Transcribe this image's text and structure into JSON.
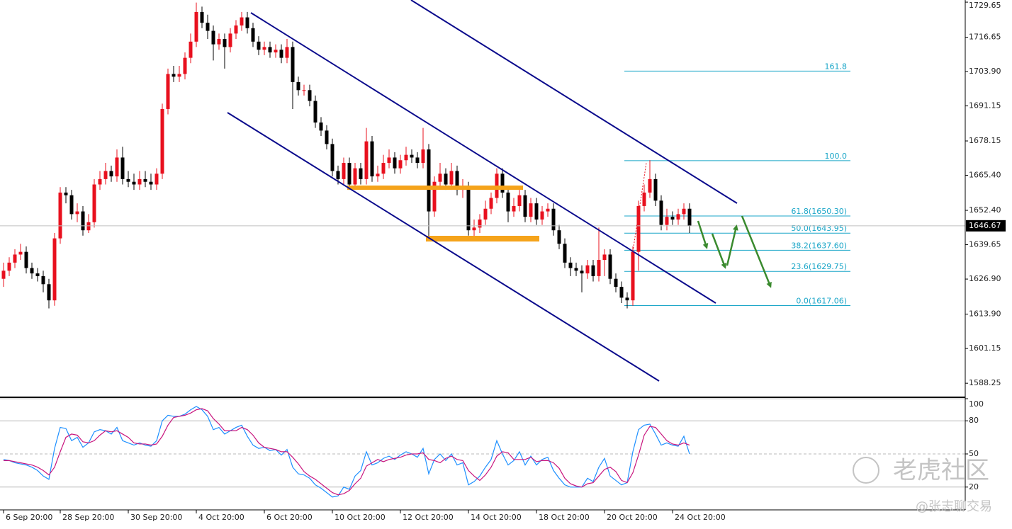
{
  "chart_data": [
    {
      "type": "candlestick",
      "categories": [
        "6 Sep 20:00",
        null,
        null,
        null,
        null,
        null,
        null,
        null,
        null,
        null,
        "28 Sep 20:00",
        null,
        null,
        null,
        null,
        null,
        null,
        null,
        null,
        null,
        null,
        null,
        "30 Sep 20:00",
        null,
        null,
        null,
        null,
        null,
        null,
        null,
        null,
        null,
        null,
        null,
        "4 Oct 20:00",
        null,
        null,
        null,
        null,
        null,
        null,
        null,
        null,
        null,
        null,
        null,
        "6 Oct 20:00",
        null,
        null,
        null,
        null,
        null,
        null,
        null,
        null,
        null,
        null,
        null,
        "10 Oct 20:00",
        null,
        null,
        null,
        null,
        null,
        null,
        null,
        null,
        null,
        null,
        null,
        "12 Oct 20:00",
        null,
        null,
        null,
        null,
        null,
        null,
        null,
        null,
        null,
        null,
        null,
        "14 Oct 20:00",
        null,
        null,
        null,
        null,
        null,
        null,
        null,
        null,
        null,
        null,
        null,
        "18 Oct 20:00",
        null,
        null,
        null,
        null,
        null,
        null,
        null,
        null,
        null,
        null,
        null,
        "20 Oct 20:00",
        null,
        null,
        null,
        null,
        null,
        null,
        null,
        null,
        null,
        null,
        null,
        "24 Oct 20:00",
        null,
        null,
        null
      ],
      "open": [
        1627,
        1630,
        1633,
        1636,
        1637,
        1631,
        1629,
        1628,
        1625,
        1619,
        1642,
        1659,
        1658,
        1651,
        1652,
        1645,
        1648,
        1662,
        1664,
        1667,
        1665,
        1672,
        1664,
        1663,
        1662,
        1664,
        1663,
        1662,
        1666,
        1690,
        1703,
        1702,
        1703,
        1709,
        1715,
        1726,
        1722,
        1719,
        1714,
        1716,
        1713,
        1718,
        1721,
        1724,
        1720,
        1715,
        1712,
        1713,
        1711,
        1712,
        1709,
        1713,
        1700,
        1697,
        1697,
        1693,
        1685,
        1682,
        1677,
        1667,
        1664,
        1670,
        1662,
        1668,
        1664,
        1678,
        1665,
        1666,
        1670,
        1672,
        1668,
        1671,
        1673,
        1672,
        1670,
        1675,
        1652,
        1663,
        1666,
        1662,
        1667,
        1660,
        1661,
        1645,
        1646,
        1649,
        1653,
        1657,
        1666,
        1659,
        1652,
        1654,
        1658,
        1650,
        1655,
        1649,
        1652,
        1653,
        1645,
        1640,
        1633,
        1631,
        1630,
        1629,
        1632,
        1628,
        1634,
        1636,
        1627,
        1624,
        1620,
        1619,
        1637,
        1654,
        1659,
        1664,
        1656,
        1647,
        1650,
        1649,
        1651,
        1653
      ],
      "high": [
        1633,
        1635,
        1638,
        1640,
        1639,
        1633,
        1631,
        1630,
        1627,
        1644,
        1661,
        1661,
        1660,
        1655,
        1654,
        1651,
        1664,
        1667,
        1670,
        1669,
        1675,
        1676,
        1667,
        1666,
        1667,
        1667,
        1666,
        1668,
        1692,
        1705,
        1706,
        1706,
        1711,
        1718,
        1729.5,
        1728,
        1725,
        1721,
        1718,
        1718,
        1720,
        1723,
        1726,
        1726,
        1722,
        1717,
        1715,
        1715,
        1714,
        1714,
        1716,
        1715,
        1702,
        1699,
        1699,
        1695,
        1687,
        1684,
        1679,
        1669,
        1672,
        1672,
        1670,
        1670,
        1683,
        1680,
        1669,
        1673,
        1675,
        1674,
        1673,
        1676,
        1675,
        1674,
        1683,
        1677,
        1665,
        1670,
        1668,
        1670,
        1669,
        1664,
        1663,
        1649,
        1651,
        1656,
        1659,
        1668,
        1668,
        1661,
        1657,
        1660,
        1660,
        1657,
        1657,
        1654,
        1655,
        1655,
        1647,
        1642,
        1635,
        1633,
        1632,
        1634,
        1634,
        1646,
        1638,
        1638,
        1629,
        1626,
        1622,
        1639,
        1656,
        1662,
        1671,
        1666,
        1658,
        1653,
        1652,
        1653,
        1655,
        1655
      ],
      "low": [
        1624,
        1628,
        1631,
        1634,
        1629,
        1627,
        1626,
        1622,
        1616,
        1617,
        1640,
        1655,
        1649,
        1648,
        1643,
        1644,
        1646,
        1660,
        1662,
        1663,
        1663,
        1662,
        1661,
        1660,
        1660,
        1661,
        1660,
        1660,
        1664,
        1688,
        1700,
        1700,
        1701,
        1707,
        1713,
        1720,
        1716,
        1708,
        1712,
        1705,
        1711,
        1716,
        1719,
        1718,
        1713,
        1710,
        1710,
        1709,
        1709,
        1707,
        1707,
        1690,
        1695,
        1695,
        1691,
        1683,
        1680,
        1675,
        1665,
        1662,
        1662,
        1660,
        1660,
        1662,
        1662,
        1663,
        1663,
        1664,
        1668,
        1666,
        1666,
        1669,
        1670,
        1668,
        1668,
        1641,
        1650,
        1661,
        1660,
        1660,
        1658,
        1657,
        1643,
        1642,
        1644,
        1647,
        1651,
        1655,
        1657,
        1648,
        1650,
        1652,
        1648,
        1648,
        1647,
        1647,
        1650,
        1643,
        1638,
        1631,
        1628,
        1628,
        1622,
        1627,
        1626,
        1626,
        1628,
        1625,
        1622,
        1618,
        1616,
        1617,
        1630,
        1652,
        1657,
        1654,
        1645,
        1645,
        1647,
        1647,
        1649,
        1644
      ],
      "close": [
        1630,
        1633,
        1636,
        1637,
        1631,
        1629,
        1628,
        1625,
        1619,
        1642,
        1659,
        1658,
        1651,
        1652,
        1645,
        1648,
        1662,
        1664,
        1667,
        1665,
        1672,
        1664,
        1663,
        1662,
        1664,
        1663,
        1662,
        1666,
        1690,
        1703,
        1702,
        1703,
        1709,
        1715,
        1726,
        1722,
        1719,
        1714,
        1716,
        1713,
        1718,
        1721,
        1724,
        1720,
        1715,
        1712,
        1713,
        1711,
        1712,
        1709,
        1713,
        1700,
        1697,
        1697,
        1693,
        1685,
        1682,
        1677,
        1667,
        1664,
        1670,
        1662,
        1668,
        1664,
        1678,
        1665,
        1666,
        1670,
        1672,
        1668,
        1671,
        1673,
        1672,
        1670,
        1675,
        1652,
        1663,
        1666,
        1662,
        1667,
        1660,
        1661,
        1645,
        1646,
        1649,
        1653,
        1657,
        1666,
        1659,
        1652,
        1654,
        1658,
        1650,
        1655,
        1649,
        1652,
        1653,
        1645,
        1640,
        1633,
        1631,
        1630,
        1629,
        1632,
        1628,
        1634,
        1636,
        1627,
        1624,
        1620,
        1619,
        1637,
        1654,
        1659,
        1664,
        1656,
        1647,
        1650,
        1649,
        1651,
        1653,
        1646.67
      ],
      "up_color": "#e8101e",
      "down_color": "#000000",
      "ylim": [
        1583.3,
        1730.45
      ],
      "yticks": [
        1729.65,
        1716.65,
        {
          "value": 1703.9,
          "label": "1703.90"
        },
        1691.15,
        1678.15,
        {
          "value": 1665.4,
          "label": "1665.40"
        },
        {
          "value": 1652.4,
          "label": "1652.40"
        },
        1639.65,
        {
          "value": 1626.9,
          "label": "1626.90"
        },
        {
          "value": 1613.9,
          "label": "1613.90"
        },
        1601.15,
        1588.25
      ],
      "fibonacci": [
        {
          "label": "161.8",
          "price": 1704.09
        },
        {
          "label": "100.0",
          "price": 1670.85
        },
        {
          "label": "61.8(1650.30)",
          "price": 1650.3
        },
        {
          "label": "50.0(1643.95)",
          "price": 1643.95
        },
        {
          "label": "38.2(1637.60)",
          "price": 1637.6
        },
        {
          "label": "23.6(1629.75)",
          "price": 1629.75
        },
        {
          "label": "0.0(1617.06)",
          "price": 1617.06
        }
      ],
      "fib_color": "#1aa6c8"
    },
    {
      "type": "line",
      "ylim": [
        0,
        100
      ],
      "yticks": [
        100,
        80,
        50,
        20
      ],
      "series": [
        {
          "color": "#1e90ff",
          "values": [
            45,
            44,
            42,
            41,
            40,
            38,
            35,
            30,
            27,
            55,
            74,
            73,
            62,
            65,
            56,
            60,
            70,
            72,
            71,
            68,
            74,
            62,
            60,
            58,
            60,
            58,
            57,
            62,
            80,
            85,
            84,
            84,
            86,
            90,
            93,
            90,
            84,
            72,
            74,
            68,
            71,
            74,
            76,
            66,
            58,
            55,
            56,
            53,
            54,
            49,
            54,
            38,
            32,
            31,
            28,
            22,
            19,
            15,
            11,
            12,
            20,
            18,
            30,
            35,
            52,
            40,
            42,
            46,
            48,
            45,
            49,
            52,
            50,
            47,
            55,
            32,
            45,
            50,
            44,
            50,
            40,
            42,
            22,
            25,
            30,
            38,
            45,
            62,
            50,
            40,
            44,
            52,
            40,
            48,
            40,
            45,
            47,
            35,
            28,
            22,
            20,
            20,
            20,
            28,
            25,
            38,
            46,
            30,
            26,
            22,
            24,
            52,
            72,
            76,
            77,
            68,
            58,
            60,
            58,
            57,
            66,
            50
          ]
        },
        {
          "color": "#c8167e",
          "values": [
            44,
            44,
            43,
            42,
            41,
            40,
            38,
            35,
            31,
            38,
            52,
            65,
            68,
            67,
            61,
            60,
            62,
            67,
            71,
            70,
            71,
            68,
            65,
            60,
            59,
            59,
            58,
            59,
            66,
            76,
            83,
            84,
            85,
            87,
            90,
            91,
            89,
            82,
            77,
            71,
            71,
            71,
            74,
            72,
            67,
            60,
            56,
            55,
            54,
            52,
            52,
            47,
            41,
            34,
            30,
            27,
            23,
            19,
            15,
            13,
            14,
            17,
            23,
            28,
            39,
            42,
            45,
            43,
            45,
            46,
            47,
            49,
            50,
            50,
            51,
            45,
            44,
            42,
            46,
            48,
            45,
            44,
            35,
            30,
            26,
            31,
            38,
            48,
            52,
            51,
            45,
            45,
            45,
            47,
            43,
            44,
            44,
            42,
            37,
            28,
            23,
            21,
            20,
            23,
            24,
            30,
            36,
            38,
            34,
            26,
            24,
            33,
            49,
            67,
            75,
            74,
            68,
            62,
            59,
            58,
            60,
            58
          ]
        }
      ]
    }
  ],
  "watermark": {
    "logo": "老虎社区",
    "author": "@张志聊交易"
  }
}
